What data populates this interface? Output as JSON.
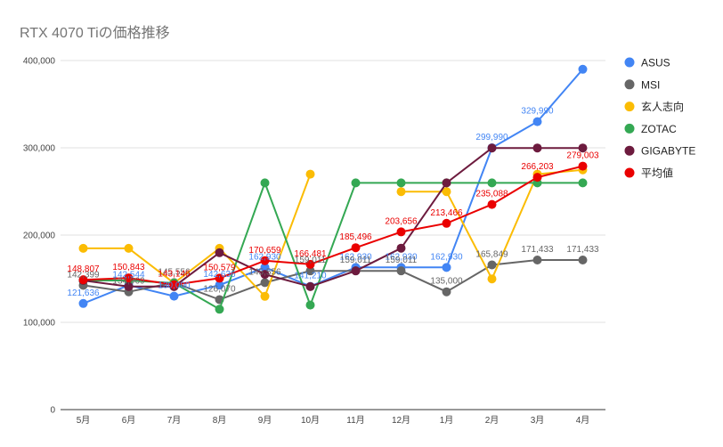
{
  "chart_data": {
    "type": "line",
    "title": "RTX 4070 Tiの価格推移",
    "xlabel": "",
    "ylabel": "",
    "ylim": [
      0,
      400000
    ],
    "yticks": [
      "0",
      "100,000",
      "200,000",
      "300,000",
      "400,000"
    ],
    "grid": true,
    "legend_position": "right",
    "categories": [
      "5月",
      "6月",
      "7月",
      "8月",
      "9月",
      "10月",
      "11月",
      "12月",
      "1月",
      "2月",
      "3月",
      "4月"
    ],
    "series": [
      {
        "name": "ASUS",
        "color": "#4285f4",
        "values": [
          121636,
          142544,
          130000,
          142636,
          162930,
          141210,
          162930,
          162930,
          162930,
          299990,
          329990,
          389990
        ],
        "labels": [
          "121,636",
          "142,544",
          "130,000",
          "142,636",
          "162,930",
          "141,210",
          "162,930",
          "162,930",
          "162,930",
          "299,990",
          "329,990",
          ""
        ]
      },
      {
        "name": "MSI",
        "color": "#666666",
        "values": [
          142399,
          134969,
          145556,
          126070,
          145556,
          159011,
          159011,
          159011,
          135000,
          165849,
          171433,
          171433
        ],
        "labels": [
          "142,399",
          "134,969",
          "145,556",
          "126,070",
          "145,556",
          "159,011",
          "159,011",
          "159,011",
          "135,000",
          "165,849",
          "171,433",
          "171,433"
        ]
      },
      {
        "name": "玄人志向",
        "color": "#fbbc04",
        "values": [
          184800,
          184800,
          145000,
          184800,
          129800,
          269800,
          null,
          249800,
          249800,
          149800,
          269800,
          274800
        ],
        "labels": []
      },
      {
        "name": "ZOTAC",
        "color": "#34a853",
        "values": [
          148000,
          148000,
          145000,
          115000,
          259800,
          119800,
          259800,
          259800,
          259800,
          259800,
          259800,
          259800
        ],
        "labels": []
      },
      {
        "name": "GIGABYTE",
        "color": "#6d1b3e",
        "values": [
          148000,
          141000,
          141000,
          179800,
          155000,
          141000,
          159000,
          185000,
          259800,
          299800,
          299800,
          299800
        ],
        "labels": []
      },
      {
        "name": "平均値",
        "color": "#ea0000",
        "values": [
          148807,
          150843,
          143146,
          150579,
          170659,
          166481,
          185496,
          203656,
          213466,
          235088,
          266203,
          279003
        ],
        "labels": [
          "148,807",
          "150,843",
          "143,146",
          "150,579",
          "170,659",
          "166,481",
          "185,496",
          "203,656",
          "213,466",
          "235,088",
          "266,203",
          "279,003"
        ]
      }
    ]
  }
}
